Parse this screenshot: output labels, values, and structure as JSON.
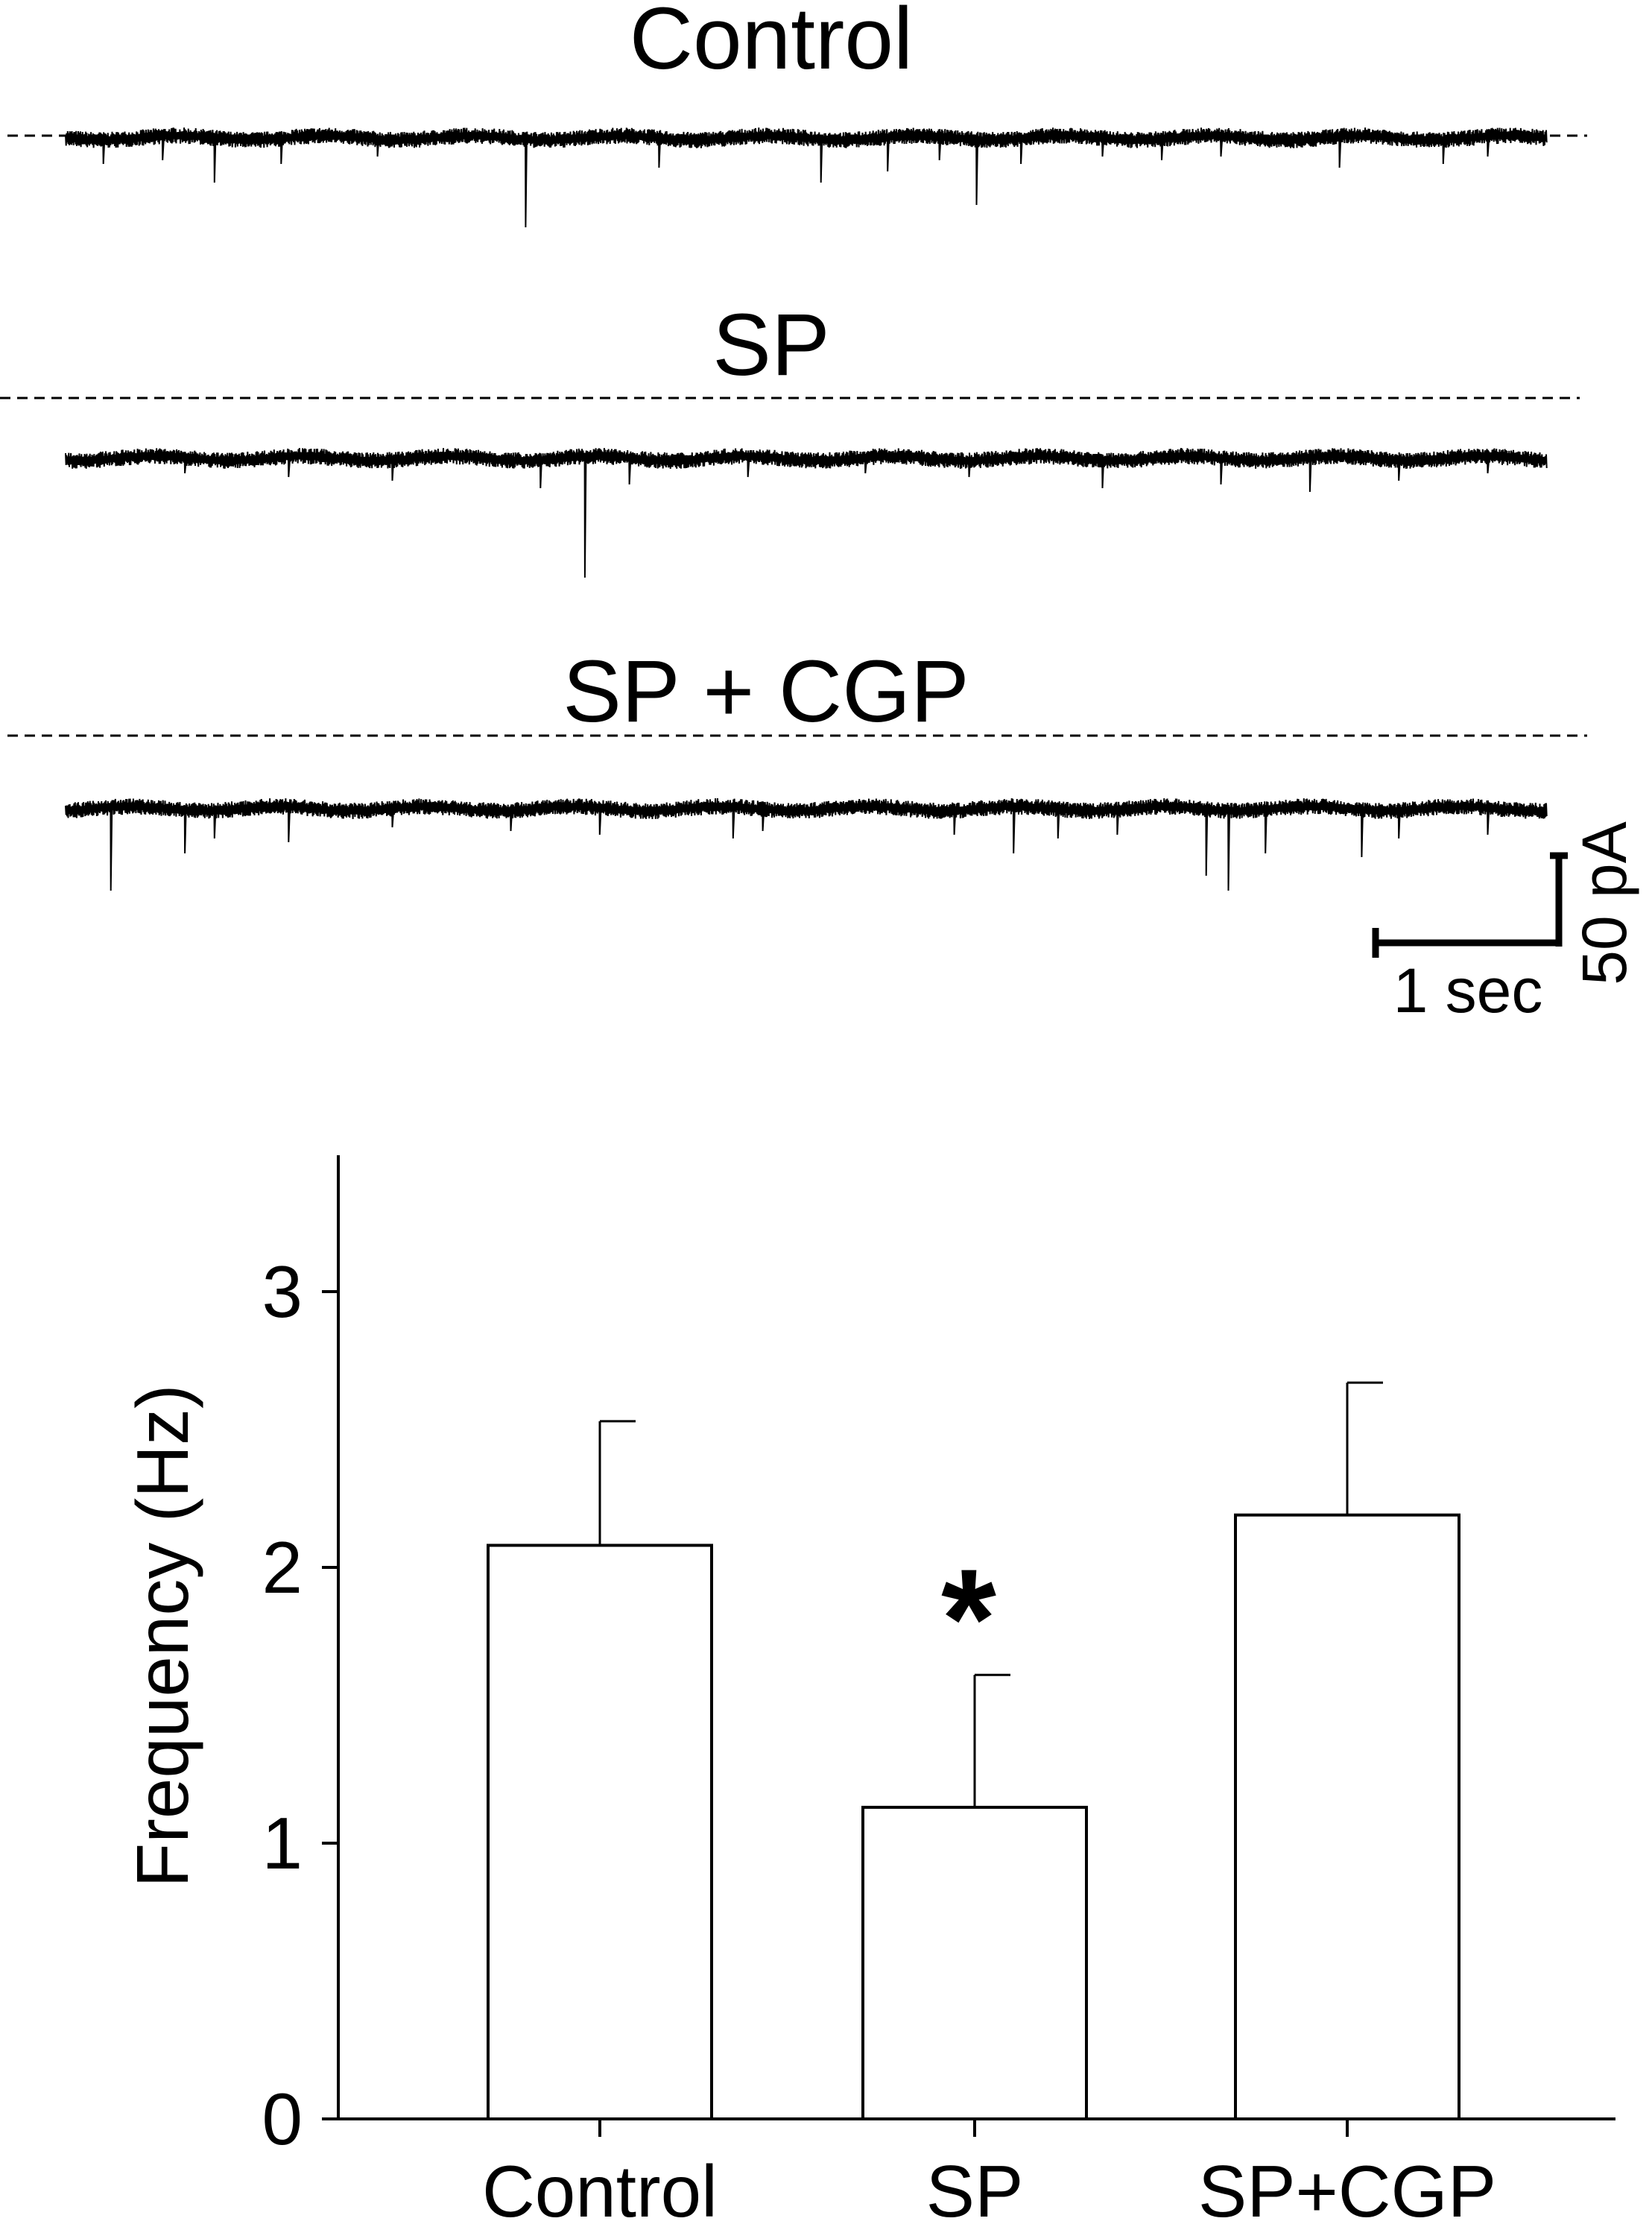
{
  "traces": {
    "panels": [
      {
        "label": "Control",
        "events": [
          [
            0.025,
            35
          ],
          [
            0.065,
            30
          ],
          [
            0.1,
            60
          ],
          [
            0.145,
            35
          ],
          [
            0.21,
            25
          ],
          [
            0.31,
            120
          ],
          [
            0.4,
            40
          ],
          [
            0.51,
            50
          ],
          [
            0.51,
            60
          ],
          [
            0.555,
            45
          ],
          [
            0.59,
            30
          ],
          [
            0.615,
            90
          ],
          [
            0.645,
            35
          ],
          [
            0.7,
            25
          ],
          [
            0.74,
            30
          ],
          [
            0.78,
            25
          ],
          [
            0.86,
            40
          ],
          [
            0.93,
            35
          ],
          [
            0.96,
            25
          ]
        ]
      },
      {
        "label": "SP",
        "events": [
          [
            0.08,
            20
          ],
          [
            0.15,
            25
          ],
          [
            0.22,
            30
          ],
          [
            0.32,
            40
          ],
          [
            0.35,
            160
          ],
          [
            0.38,
            35
          ],
          [
            0.46,
            25
          ],
          [
            0.54,
            20
          ],
          [
            0.61,
            25
          ],
          [
            0.7,
            40
          ],
          [
            0.78,
            35
          ],
          [
            0.84,
            45
          ],
          [
            0.9,
            30
          ],
          [
            0.96,
            20
          ]
        ]
      },
      {
        "label": "SP + CGP",
        "events": [
          [
            0.03,
            110
          ],
          [
            0.08,
            60
          ],
          [
            0.1,
            40
          ],
          [
            0.15,
            45
          ],
          [
            0.22,
            25
          ],
          [
            0.3,
            30
          ],
          [
            0.36,
            35
          ],
          [
            0.45,
            40
          ],
          [
            0.47,
            30
          ],
          [
            0.6,
            35
          ],
          [
            0.64,
            60
          ],
          [
            0.67,
            40
          ],
          [
            0.71,
            35
          ],
          [
            0.77,
            90
          ],
          [
            0.785,
            110
          ],
          [
            0.81,
            60
          ],
          [
            0.875,
            65
          ],
          [
            0.9,
            40
          ],
          [
            0.96,
            35
          ]
        ]
      }
    ],
    "scale_bar": {
      "time": "1 sec",
      "current": "50 pA"
    }
  },
  "chart_data": {
    "type": "bar",
    "categories": [
      "Control",
      "SP",
      "SP+CGP"
    ],
    "values": [
      2.08,
      1.13,
      2.19
    ],
    "errors": [
      0.45,
      0.48,
      0.48
    ],
    "ylabel": "Frequency (Hz)",
    "xlabel": "",
    "ylim": [
      0,
      3.5
    ],
    "yticks": [
      0,
      1,
      2,
      3
    ],
    "annotations": [
      {
        "category": "SP",
        "text": "*"
      }
    ],
    "bar_fill": "#ffffff",
    "bar_stroke": "#000000"
  }
}
